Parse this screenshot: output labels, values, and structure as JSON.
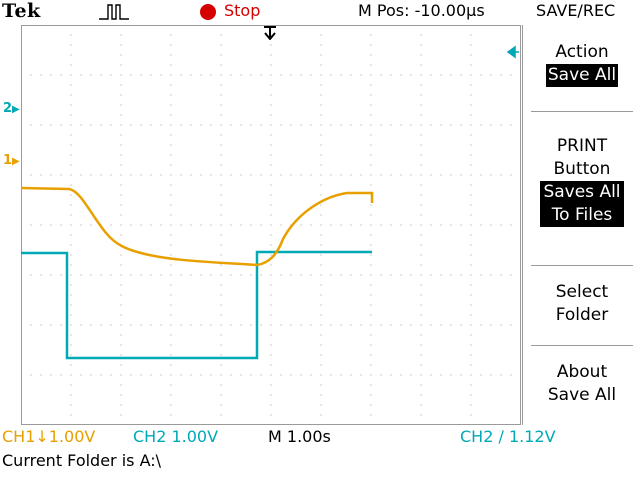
{
  "header": {
    "brand": "Tek",
    "acquisition_state": "Stop",
    "horizontal_position": "M Pos: -10.00µs",
    "menu_title": "SAVE/REC"
  },
  "channel_markers": {
    "ch2": "2",
    "ch1": "1"
  },
  "softkey_menu": {
    "action": {
      "label": "Action",
      "value": "Save All"
    },
    "print_button": {
      "label_line1": "PRINT",
      "label_line2": "Button",
      "value_line1": "Saves All",
      "value_line2": "To Files"
    },
    "select_folder": {
      "line1": "Select",
      "line2": "Folder"
    },
    "about": {
      "line1": "About",
      "line2": "Save All"
    }
  },
  "readouts": {
    "ch1": "CH1↓1.00V",
    "ch2": "CH2  1.00V",
    "timebase": "M 1.00s",
    "trigger": "CH2 ∕ 1.12V"
  },
  "status": {
    "current_folder": "Current Folder is A:\\"
  },
  "colors": {
    "ch1": "#e8a000",
    "ch2": "#00a9b5",
    "stop": "#d40000",
    "grid": "#9a9a9a"
  },
  "icons": [
    "trigger-pulse-icon",
    "stop-indicator-icon",
    "trigger-position-marker-icon",
    "trigger-level-arrow-icon",
    "channel-marker-arrow-icon"
  ]
}
